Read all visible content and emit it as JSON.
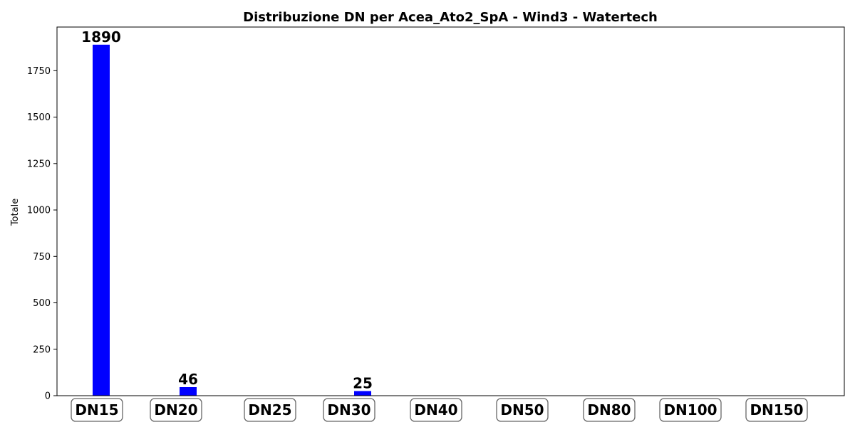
{
  "chart_data": {
    "type": "bar",
    "title": "Distribuzione DN per Acea_Ato2_SpA - Wind3 - Watertech",
    "xlabel": "",
    "ylabel": "Totale",
    "categories": [
      "DN15",
      "DN20",
      "DN25",
      "DN30",
      "DN40",
      "DN50",
      "DN80",
      "DN100",
      "DN150"
    ],
    "values": [
      1890,
      46,
      0,
      25,
      0,
      0,
      0,
      0,
      0
    ],
    "data_labels": [
      "1890",
      "46",
      "",
      "25",
      "",
      "",
      "",
      "",
      ""
    ],
    "yticks": [
      0,
      250,
      500,
      750,
      1000,
      1250,
      1500,
      1750
    ],
    "ylim": [
      0,
      1985
    ],
    "bar_color": "#0000ff",
    "grid": false,
    "legend": "none"
  }
}
